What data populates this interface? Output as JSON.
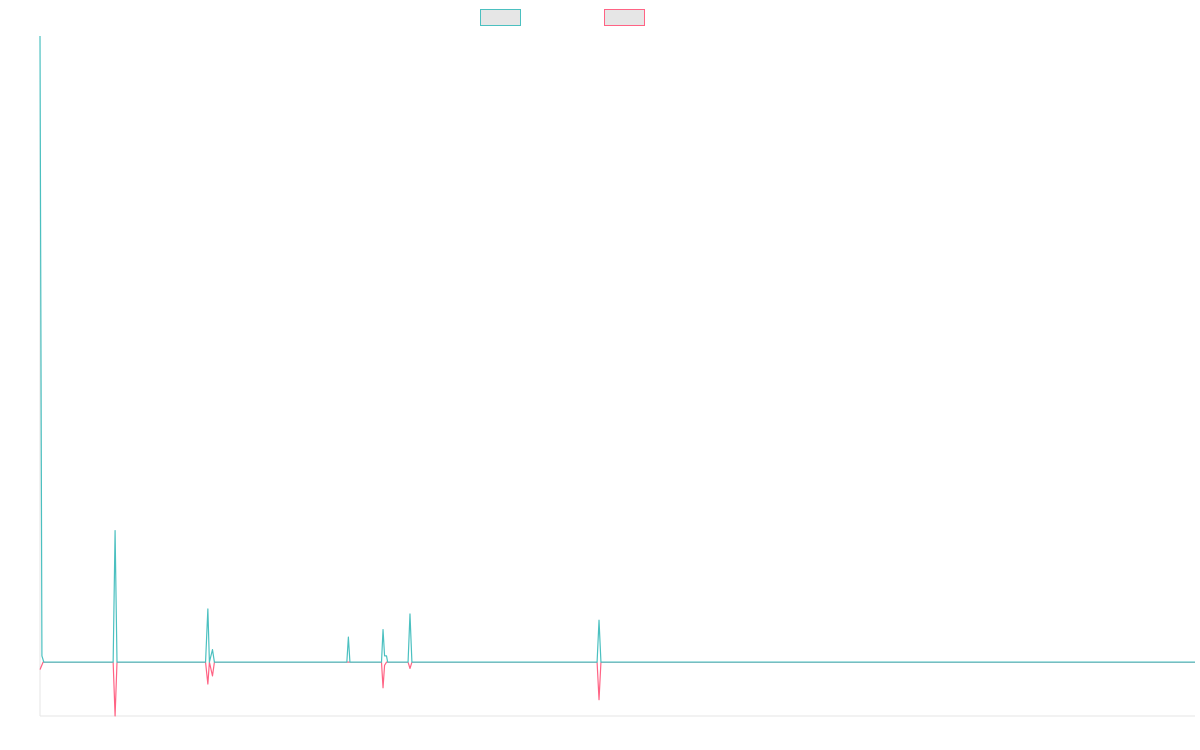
{
  "chart_data": {
    "type": "line",
    "title": "",
    "xlabel": "",
    "ylabel": "",
    "x_range": [
      0,
      300
    ],
    "ylim": [
      -0.086,
      1.0
    ],
    "grid": false,
    "legend": "top-center",
    "colors": {
      "series_a": "#4bc0c0",
      "series_b": "#ff6384",
      "legend_fill": "#e6e6e6",
      "axis": "#e5e5e5"
    },
    "series": [
      {
        "name": "",
        "color": "#4bc0c0",
        "points": [
          [
            0,
            1.0
          ],
          [
            0.5,
            0.01
          ],
          [
            1,
            0
          ],
          [
            19,
            0
          ],
          [
            19.5,
            0.21
          ],
          [
            20,
            0
          ],
          [
            43,
            0
          ],
          [
            43.6,
            0.085
          ],
          [
            44,
            0
          ],
          [
            44.8,
            0.02
          ],
          [
            45.3,
            0
          ],
          [
            79.7,
            0
          ],
          [
            80.1,
            0.04
          ],
          [
            80.5,
            0
          ],
          [
            88.7,
            0
          ],
          [
            89.1,
            0.052
          ],
          [
            89.5,
            0.01
          ],
          [
            90,
            0.01
          ],
          [
            90.3,
            0
          ],
          [
            95.6,
            0
          ],
          [
            96.1,
            0.077
          ],
          [
            96.6,
            0
          ],
          [
            144.7,
            0
          ],
          [
            145.2,
            0.067
          ],
          [
            145.7,
            0
          ],
          [
            300,
            0
          ]
        ]
      },
      {
        "name": "",
        "color": "#ff6384",
        "points": [
          [
            0,
            -0.012
          ],
          [
            0.8,
            0
          ],
          [
            19,
            0
          ],
          [
            19.5,
            -0.086
          ],
          [
            20,
            0
          ],
          [
            43,
            0
          ],
          [
            43.6,
            -0.035
          ],
          [
            44,
            0
          ],
          [
            44.8,
            -0.022
          ],
          [
            45.3,
            0
          ],
          [
            88.7,
            0
          ],
          [
            89.1,
            -0.041
          ],
          [
            89.5,
            -0.005
          ],
          [
            90,
            0
          ],
          [
            95.6,
            0
          ],
          [
            96.1,
            -0.01
          ],
          [
            96.6,
            0
          ],
          [
            144.7,
            0
          ],
          [
            145.2,
            -0.06
          ],
          [
            145.7,
            0
          ],
          [
            300,
            0
          ]
        ]
      }
    ]
  }
}
